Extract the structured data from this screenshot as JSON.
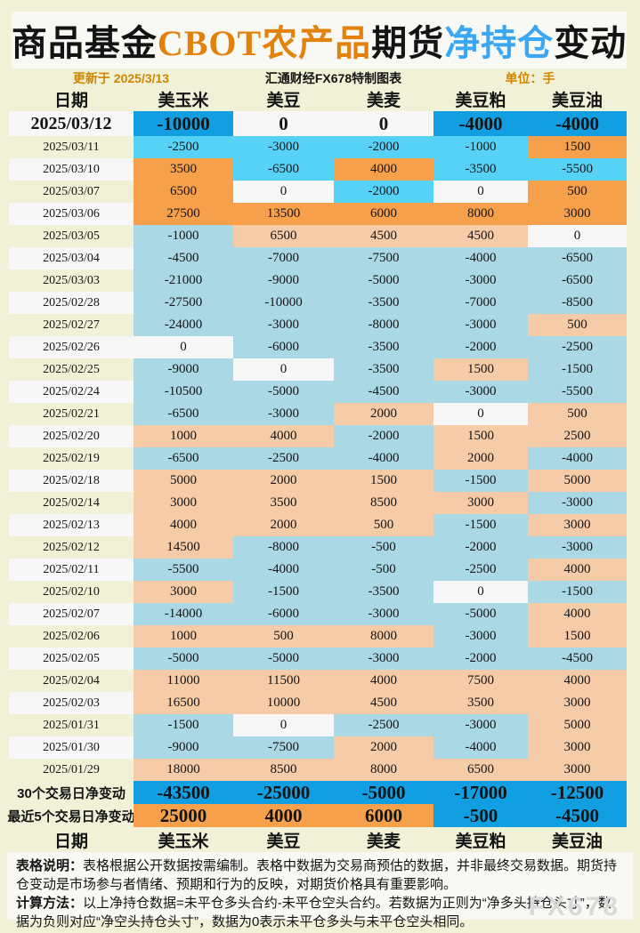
{
  "page": {
    "title_segments": [
      {
        "text": "商品基金",
        "color": "#141414"
      },
      {
        "text": "CBOT农产品",
        "color": "#e2820a"
      },
      {
        "text": "期货",
        "color": "#141414"
      },
      {
        "text": "净持仓",
        "color": "#3ba7f2"
      },
      {
        "text": "变动",
        "color": "#141414"
      }
    ],
    "subtitle": {
      "updated": "更新于 2025/3/13",
      "source": "汇通财经FX678特制图表",
      "unit": "单位：手"
    },
    "footer": {
      "note1_label": "表格说明：",
      "note1_text": "表格根据公开数据按需编制。表格中数据为交易商预估的数据，并非最终交易数据。期货持仓变动是市场参与者情绪、预期和行为的反映，对期货价格具有重要影响。",
      "note2_label": "计算方法：",
      "note2_text": "以上净持仓数据=未平仓多头合约-未平仓空头合约。若数据为正则为“净多头持仓头寸”，数据为负则对应“净空头持仓头寸”，数据为0表示未平仓多头与未平仓空头相同。"
    },
    "watermark": "FX678"
  },
  "colors": {
    "page_bg": "#f1f1d7",
    "panel_bg": "#f8f8f5",
    "zero_cell": "#f7f7f7",
    "latest_negative": "#129fe2",
    "latest_positive": "#f6a04c",
    "recent_negative": "#55d2f6",
    "recent_positive": "#f6a04c",
    "older_negative": "#aad8e5",
    "older_positive": "#f6cba7",
    "title_orange": "#e2820a",
    "title_blue": "#3ba7f2",
    "subtitle_orange": "#cf8600"
  },
  "chart_data": {
    "type": "table",
    "title": "商品基金CBOT农产品期货净持仓变动",
    "unit": "手",
    "updated": "2025/3/13",
    "columns": [
      "日期",
      "美玉米",
      "美豆",
      "美麦",
      "美豆粕",
      "美豆油"
    ],
    "rows": [
      {
        "date": "2025/03/12",
        "values": [
          -10000,
          0,
          0,
          -4000,
          -4000
        ]
      },
      {
        "date": "2025/03/11",
        "values": [
          -2500,
          -3000,
          -2000,
          -1000,
          1500
        ]
      },
      {
        "date": "2025/03/10",
        "values": [
          3500,
          -6500,
          4000,
          -3500,
          -5500
        ]
      },
      {
        "date": "2025/03/07",
        "values": [
          6500,
          0,
          -2000,
          0,
          500
        ]
      },
      {
        "date": "2025/03/06",
        "values": [
          27500,
          13500,
          6000,
          8000,
          3000
        ]
      },
      {
        "date": "2025/03/05",
        "values": [
          -1000,
          6500,
          4500,
          4500,
          0
        ]
      },
      {
        "date": "2025/03/04",
        "values": [
          -4500,
          -7000,
          -7500,
          -4000,
          -6500
        ]
      },
      {
        "date": "2025/03/03",
        "values": [
          -21000,
          -9000,
          -5000,
          -3000,
          -6500
        ]
      },
      {
        "date": "2025/02/28",
        "values": [
          -27500,
          -10000,
          -3500,
          -7000,
          -8500
        ]
      },
      {
        "date": "2025/02/27",
        "values": [
          -24000,
          -3000,
          -8000,
          -3000,
          500
        ]
      },
      {
        "date": "2025/02/26",
        "values": [
          0,
          -6000,
          -3500,
          -2000,
          -2500
        ]
      },
      {
        "date": "2025/02/25",
        "values": [
          -9000,
          0,
          -3500,
          1500,
          -1500
        ]
      },
      {
        "date": "2025/02/24",
        "values": [
          -10500,
          -5000,
          -4500,
          -3000,
          -5500
        ]
      },
      {
        "date": "2025/02/21",
        "values": [
          -6500,
          -3000,
          2000,
          0,
          500
        ]
      },
      {
        "date": "2025/02/20",
        "values": [
          1000,
          4000,
          -2000,
          1500,
          2500
        ]
      },
      {
        "date": "2025/02/19",
        "values": [
          -6500,
          -2500,
          -4000,
          2000,
          -4000
        ]
      },
      {
        "date": "2025/02/18",
        "values": [
          5000,
          2000,
          1500,
          -1500,
          5000
        ]
      },
      {
        "date": "2025/02/14",
        "values": [
          3000,
          3500,
          8500,
          3000,
          -3000
        ]
      },
      {
        "date": "2025/02/13",
        "values": [
          4000,
          2000,
          500,
          -1500,
          3000
        ]
      },
      {
        "date": "2025/02/12",
        "values": [
          14500,
          -8000,
          -500,
          -2000,
          -3000
        ]
      },
      {
        "date": "2025/02/11",
        "values": [
          -5500,
          -4000,
          -500,
          -2500,
          4000
        ]
      },
      {
        "date": "2025/02/10",
        "values": [
          3000,
          -1500,
          -3500,
          0,
          -1500
        ]
      },
      {
        "date": "2025/02/07",
        "values": [
          -14000,
          -6000,
          -3000,
          -5000,
          4000
        ]
      },
      {
        "date": "2025/02/06",
        "values": [
          1000,
          500,
          8000,
          -3000,
          1500
        ]
      },
      {
        "date": "2025/02/05",
        "values": [
          -5000,
          -5000,
          -3000,
          -2000,
          -4500
        ]
      },
      {
        "date": "2025/02/04",
        "values": [
          11000,
          11500,
          4000,
          7500,
          4000
        ]
      },
      {
        "date": "2025/02/03",
        "values": [
          16500,
          10000,
          4500,
          3500,
          3000
        ]
      },
      {
        "date": "2025/01/31",
        "values": [
          -1500,
          0,
          -2500,
          -3000,
          5000
        ]
      },
      {
        "date": "2025/01/30",
        "values": [
          -9000,
          -7500,
          2000,
          -4000,
          3000
        ]
      },
      {
        "date": "2025/01/29",
        "values": [
          18000,
          8500,
          8000,
          6500,
          3000
        ]
      }
    ],
    "summary_rows": [
      {
        "label": "30个交易日净变动",
        "values": [
          -43500,
          -25000,
          -5000,
          -17000,
          -12500
        ]
      },
      {
        "label": "最近5个交易日净变动",
        "values": [
          25000,
          4000,
          6000,
          -500,
          -4500
        ]
      }
    ]
  }
}
